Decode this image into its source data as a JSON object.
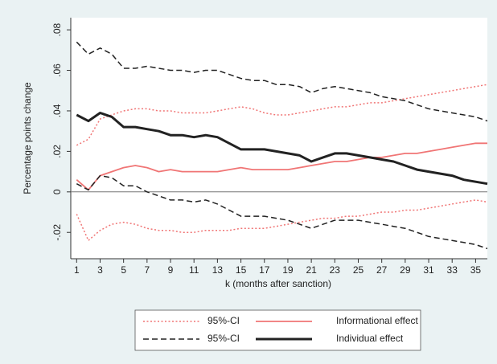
{
  "chart_data": {
    "type": "line",
    "x_label": "k (months after sanction)",
    "y_label": "Percentage points change",
    "x": [
      1,
      2,
      3,
      4,
      5,
      6,
      7,
      8,
      9,
      10,
      11,
      12,
      13,
      14,
      15,
      16,
      17,
      18,
      19,
      20,
      21,
      22,
      23,
      24,
      25,
      26,
      27,
      28,
      29,
      30,
      31,
      32,
      33,
      34,
      35,
      36
    ],
    "xlim": [
      0.5,
      36
    ],
    "xticks": [
      1,
      3,
      5,
      7,
      9,
      11,
      13,
      15,
      17,
      19,
      21,
      23,
      25,
      27,
      29,
      31,
      33,
      35
    ],
    "ylim": [
      -0.033,
      0.086
    ],
    "yticks": [
      {
        "value": -0.02,
        "label": "-.02"
      },
      0,
      {
        "value": 0.02,
        "label": ".02"
      },
      {
        "value": 0.04,
        "label": ".04"
      },
      {
        "value": 0.06,
        "label": ".06"
      },
      {
        "value": 0.08,
        "label": ".08"
      }
    ],
    "zero_line": true,
    "legend_columns": 2,
    "series": [
      {
        "name": "95%-CI",
        "color": "#f07575",
        "dash": "dot",
        "line_width": 1.5,
        "upper": [
          0.023,
          0.026,
          0.036,
          0.038,
          0.04,
          0.041,
          0.041,
          0.04,
          0.04,
          0.039,
          0.039,
          0.039,
          0.04,
          0.041,
          0.042,
          0.041,
          0.039,
          0.038,
          0.038,
          0.039,
          0.04,
          0.041,
          0.042,
          0.042,
          0.043,
          0.044,
          0.044,
          0.045,
          0.046,
          0.047,
          0.048,
          0.049,
          0.05,
          0.051,
          0.052,
          0.053
        ],
        "lower": [
          -0.011,
          -0.024,
          -0.019,
          -0.016,
          -0.015,
          -0.016,
          -0.018,
          -0.019,
          -0.019,
          -0.02,
          -0.02,
          -0.019,
          -0.019,
          -0.019,
          -0.018,
          -0.018,
          -0.018,
          -0.017,
          -0.016,
          -0.015,
          -0.014,
          -0.013,
          -0.013,
          -0.012,
          -0.012,
          -0.011,
          -0.01,
          -0.01,
          -0.009,
          -0.009,
          -0.008,
          -0.007,
          -0.006,
          -0.005,
          -0.004,
          -0.005
        ]
      },
      {
        "name": "Informational effect",
        "color": "#f07575",
        "dash": "solid",
        "line_width": 1.8,
        "values": [
          0.006,
          0.001,
          0.008,
          0.01,
          0.012,
          0.013,
          0.012,
          0.01,
          0.011,
          0.01,
          0.01,
          0.01,
          0.01,
          0.011,
          0.012,
          0.011,
          0.011,
          0.011,
          0.011,
          0.012,
          0.013,
          0.014,
          0.015,
          0.015,
          0.016,
          0.017,
          0.017,
          0.018,
          0.019,
          0.019,
          0.02,
          0.021,
          0.022,
          0.023,
          0.024,
          0.024
        ]
      },
      {
        "name": "95%-CI",
        "color": "#222222",
        "dash": "dash",
        "line_width": 1.5,
        "upper": [
          0.074,
          0.068,
          0.071,
          0.068,
          0.061,
          0.061,
          0.062,
          0.061,
          0.06,
          0.06,
          0.059,
          0.06,
          0.06,
          0.058,
          0.056,
          0.055,
          0.055,
          0.053,
          0.053,
          0.052,
          0.049,
          0.051,
          0.052,
          0.051,
          0.05,
          0.049,
          0.047,
          0.046,
          0.045,
          0.043,
          0.041,
          0.04,
          0.039,
          0.038,
          0.037,
          0.035
        ],
        "lower": [
          0.004,
          0.001,
          0.008,
          0.007,
          0.003,
          0.003,
          0.0,
          -0.002,
          -0.004,
          -0.004,
          -0.005,
          -0.004,
          -0.006,
          -0.009,
          -0.012,
          -0.012,
          -0.012,
          -0.013,
          -0.014,
          -0.016,
          -0.018,
          -0.016,
          -0.014,
          -0.014,
          -0.014,
          -0.015,
          -0.016,
          -0.017,
          -0.018,
          -0.02,
          -0.022,
          -0.023,
          -0.024,
          -0.025,
          -0.026,
          -0.028
        ]
      },
      {
        "name": "Individual effect",
        "color": "#222222",
        "dash": "solid",
        "line_width": 3,
        "values": [
          0.038,
          0.035,
          0.039,
          0.037,
          0.032,
          0.032,
          0.031,
          0.03,
          0.028,
          0.028,
          0.027,
          0.028,
          0.027,
          0.024,
          0.021,
          0.021,
          0.021,
          0.02,
          0.019,
          0.018,
          0.015,
          0.017,
          0.019,
          0.019,
          0.018,
          0.017,
          0.016,
          0.015,
          0.013,
          0.011,
          0.01,
          0.009,
          0.008,
          0.006,
          0.005,
          0.004
        ]
      }
    ]
  }
}
